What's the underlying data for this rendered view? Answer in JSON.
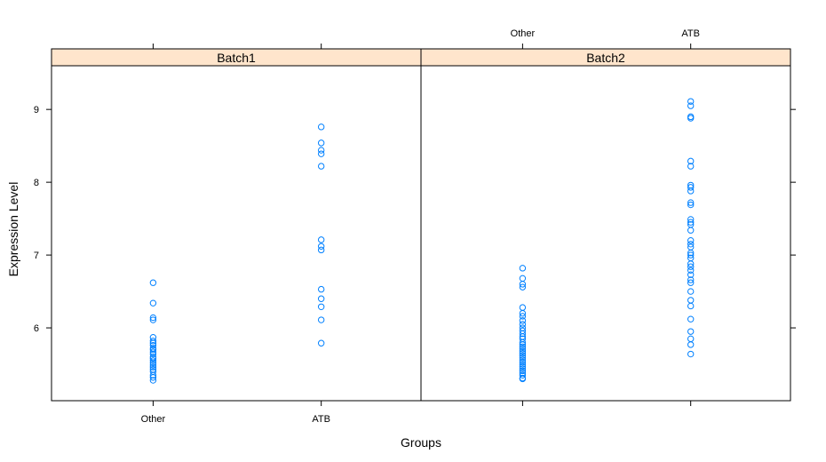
{
  "chart_data": {
    "type": "scatter",
    "title": "",
    "xlabel": "Groups",
    "ylabel": "Expression Level",
    "categories": [
      "Other",
      "ATB"
    ],
    "ylim": [
      5.0,
      9.6
    ],
    "yticks": [
      6,
      7,
      8,
      9
    ],
    "grid": false,
    "legend": "none",
    "strip_color": "#ffe5cc",
    "point_color": "#0080ff",
    "panels": [
      {
        "name": "Batch1",
        "series": [
          {
            "category": "Other",
            "values": [
              6.62,
              6.34,
              6.14,
              6.11,
              5.87,
              5.82,
              5.79,
              5.76,
              5.72,
              5.7,
              5.67,
              5.64,
              5.6,
              5.58,
              5.55,
              5.52,
              5.49,
              5.46,
              5.43,
              5.4,
              5.35,
              5.32,
              5.28
            ]
          },
          {
            "category": "ATB",
            "values": [
              8.76,
              8.54,
              8.44,
              8.39,
              8.22,
              7.21,
              7.12,
              7.07,
              6.53,
              6.4,
              6.29,
              6.11,
              5.79
            ]
          }
        ]
      },
      {
        "name": "Batch2",
        "series": [
          {
            "category": "Other",
            "values": [
              6.82,
              6.68,
              6.6,
              6.56,
              6.28,
              6.2,
              6.16,
              6.1,
              6.05,
              6.0,
              5.96,
              5.92,
              5.88,
              5.85,
              5.8,
              5.77,
              5.74,
              5.71,
              5.68,
              5.65,
              5.62,
              5.59,
              5.56,
              5.53,
              5.5,
              5.47,
              5.44,
              5.41,
              5.38,
              5.35,
              5.31,
              5.3
            ]
          },
          {
            "category": "ATB",
            "values": [
              9.11,
              9.05,
              8.9,
              8.88,
              8.29,
              8.22,
              7.96,
              7.93,
              7.88,
              7.72,
              7.69,
              7.49,
              7.45,
              7.42,
              7.34,
              7.2,
              7.15,
              7.11,
              7.03,
              7.0,
              6.96,
              6.88,
              6.84,
              6.79,
              6.73,
              6.66,
              6.62,
              6.5,
              6.38,
              6.3,
              6.12,
              5.95,
              5.85,
              5.77,
              5.64
            ]
          }
        ]
      }
    ]
  }
}
